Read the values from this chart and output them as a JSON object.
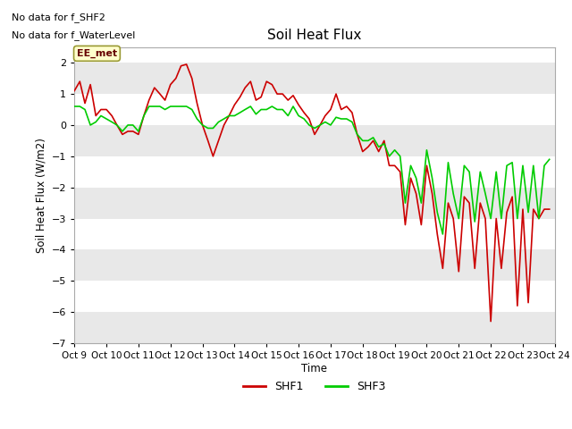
{
  "title": "Soil Heat Flux",
  "ylabel": "Soil Heat Flux (W/m2)",
  "xlabel": "Time",
  "ylim": [
    -7.0,
    2.5
  ],
  "yticks": [
    2.0,
    1.0,
    0.0,
    -1.0,
    -2.0,
    -3.0,
    -4.0,
    -5.0,
    -6.0,
    -7.0
  ],
  "xtick_labels": [
    "Oct 9",
    "Oct 10",
    "Oct 11",
    "Oct 12",
    "Oct 13",
    "Oct 14",
    "Oct 15",
    "Oct 16",
    "Oct 17",
    "Oct 18",
    "Oct 19",
    "Oct 20",
    "Oct 21",
    "Oct 22",
    "Oct 23",
    "Oct 24"
  ],
  "note_line1": "No data for f_SHF2",
  "note_line2": "No data for f_WaterLevel",
  "legend_label": "EE_met",
  "shf1_color": "#cc0000",
  "shf3_color": "#00cc00",
  "bg_color": "#ffffff",
  "plot_bg": "#ffffff",
  "band_color1": "#ffffff",
  "band_color2": "#e8e8e8",
  "grid_color": "#ffffff",
  "shf1_x": [
    9.0,
    9.17,
    9.33,
    9.5,
    9.67,
    9.83,
    10.0,
    10.17,
    10.33,
    10.5,
    10.67,
    10.83,
    11.0,
    11.17,
    11.33,
    11.5,
    11.67,
    11.83,
    12.0,
    12.17,
    12.33,
    12.5,
    12.67,
    12.83,
    13.0,
    13.17,
    13.33,
    13.5,
    13.67,
    13.83,
    14.0,
    14.17,
    14.33,
    14.5,
    14.67,
    14.83,
    15.0,
    15.17,
    15.33,
    15.5,
    15.67,
    15.83,
    16.0,
    16.17,
    16.33,
    16.5,
    16.67,
    16.83,
    17.0,
    17.17,
    17.33,
    17.5,
    17.67,
    17.83,
    18.0,
    18.17,
    18.33,
    18.5,
    18.67,
    18.83,
    19.0,
    19.17,
    19.33,
    19.5,
    19.67,
    19.83,
    20.0,
    20.17,
    20.33,
    20.5,
    20.67,
    20.83,
    21.0,
    21.17,
    21.33,
    21.5,
    21.67,
    21.83,
    22.0,
    22.17,
    22.33,
    22.5,
    22.67,
    22.83,
    23.0,
    23.17,
    23.33,
    23.5,
    23.67,
    23.83
  ],
  "shf1_y": [
    1.1,
    1.4,
    0.7,
    1.3,
    0.3,
    0.5,
    0.5,
    0.3,
    0.0,
    -0.3,
    -0.2,
    -0.2,
    -0.3,
    0.3,
    0.8,
    1.2,
    1.0,
    0.8,
    1.3,
    1.5,
    1.9,
    1.95,
    1.5,
    0.7,
    0.0,
    -0.5,
    -1.0,
    -0.5,
    0.0,
    0.3,
    0.65,
    0.9,
    1.2,
    1.4,
    0.8,
    0.9,
    1.4,
    1.3,
    1.0,
    1.0,
    0.8,
    0.95,
    0.65,
    0.4,
    0.2,
    -0.3,
    0.0,
    0.3,
    0.5,
    1.0,
    0.5,
    0.6,
    0.4,
    -0.3,
    -0.85,
    -0.7,
    -0.5,
    -0.85,
    -0.5,
    -1.3,
    -1.3,
    -1.5,
    -3.2,
    -1.7,
    -2.2,
    -3.2,
    -1.3,
    -2.2,
    -3.5,
    -4.6,
    -2.5,
    -3.0,
    -4.7,
    -2.3,
    -2.5,
    -4.6,
    -2.5,
    -3.0,
    -6.3,
    -3.0,
    -4.6,
    -2.8,
    -2.3,
    -5.8,
    -2.7,
    -5.7,
    -2.7,
    -3.0,
    -2.7,
    -2.7
  ],
  "shf3_x": [
    9.0,
    9.17,
    9.33,
    9.5,
    9.67,
    9.83,
    10.0,
    10.17,
    10.33,
    10.5,
    10.67,
    10.83,
    11.0,
    11.17,
    11.33,
    11.5,
    11.67,
    11.83,
    12.0,
    12.17,
    12.33,
    12.5,
    12.67,
    12.83,
    13.0,
    13.17,
    13.33,
    13.5,
    13.67,
    13.83,
    14.0,
    14.17,
    14.33,
    14.5,
    14.67,
    14.83,
    15.0,
    15.17,
    15.33,
    15.5,
    15.67,
    15.83,
    16.0,
    16.17,
    16.33,
    16.5,
    16.67,
    16.83,
    17.0,
    17.17,
    17.33,
    17.5,
    17.67,
    17.83,
    18.0,
    18.17,
    18.33,
    18.5,
    18.67,
    18.83,
    19.0,
    19.17,
    19.33,
    19.5,
    19.67,
    19.83,
    20.0,
    20.17,
    20.33,
    20.5,
    20.67,
    20.83,
    21.0,
    21.17,
    21.33,
    21.5,
    21.67,
    21.83,
    22.0,
    22.17,
    22.33,
    22.5,
    22.67,
    22.83,
    23.0,
    23.17,
    23.33,
    23.5,
    23.67,
    23.83
  ],
  "shf3_y": [
    0.6,
    0.6,
    0.5,
    0.0,
    0.1,
    0.3,
    0.2,
    0.1,
    0.0,
    -0.2,
    0.0,
    0.0,
    -0.2,
    0.3,
    0.6,
    0.6,
    0.6,
    0.5,
    0.6,
    0.6,
    0.6,
    0.6,
    0.5,
    0.2,
    0.0,
    -0.1,
    -0.1,
    0.1,
    0.2,
    0.3,
    0.3,
    0.4,
    0.5,
    0.6,
    0.35,
    0.5,
    0.5,
    0.6,
    0.5,
    0.5,
    0.3,
    0.6,
    0.3,
    0.2,
    0.0,
    -0.1,
    0.0,
    0.1,
    0.0,
    0.25,
    0.2,
    0.2,
    0.1,
    -0.3,
    -0.5,
    -0.5,
    -0.4,
    -0.7,
    -0.6,
    -1.0,
    -0.8,
    -1.0,
    -2.5,
    -1.3,
    -1.7,
    -2.5,
    -0.8,
    -1.7,
    -2.8,
    -3.5,
    -1.2,
    -2.2,
    -3.0,
    -1.3,
    -1.5,
    -3.1,
    -1.5,
    -2.2,
    -3.0,
    -1.5,
    -3.0,
    -1.3,
    -1.2,
    -3.0,
    -1.3,
    -2.8,
    -1.3,
    -3.0,
    -1.3,
    -1.1
  ]
}
